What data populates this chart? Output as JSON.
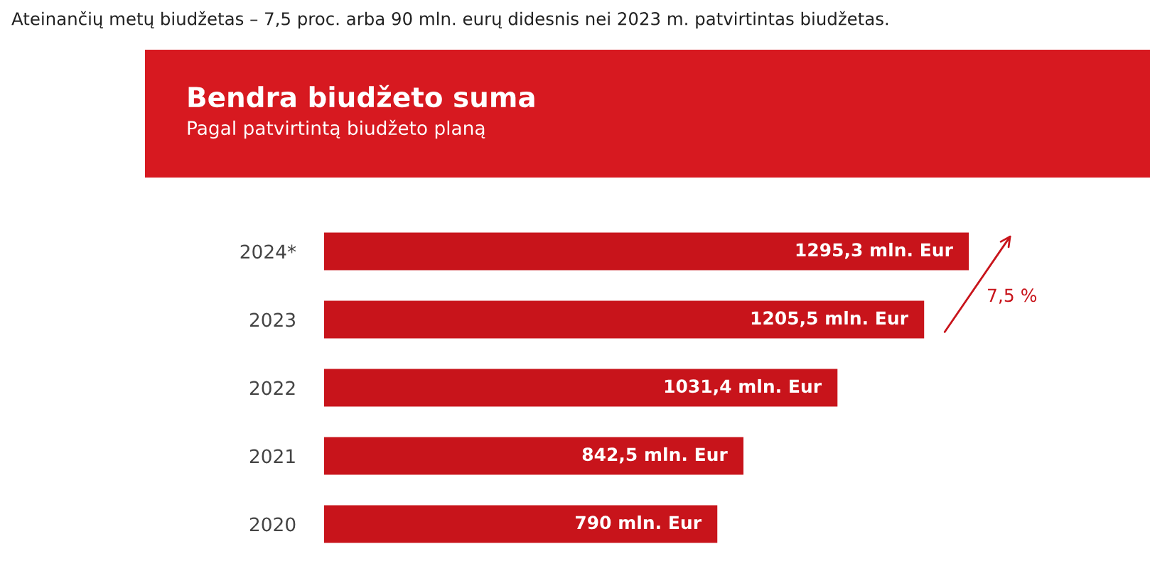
{
  "chart_data": {
    "type": "bar",
    "orientation": "horizontal",
    "title": "Bendra biudžeto suma",
    "subtitle": "Pagal patvirtintą biudžeto planą",
    "categories": [
      "2024*",
      "2023",
      "2022",
      "2021",
      "2020"
    ],
    "values": [
      1295.3,
      1205.5,
      1031.4,
      842.5,
      790
    ],
    "value_labels": [
      "1295,3 mln. Eur",
      "1205,5 mln. Eur",
      "1031,4 mln. Eur",
      "842,5 mln. Eur",
      "790 mln. Eur"
    ],
    "color": "#c8141b",
    "annotations": [
      "Ateinančių metų biudžetas – 7,5 proc. arba 90 mln. eurų didesnis nei 2023 m. patvirtintas biudžetas.",
      "7,5 %"
    ]
  }
}
